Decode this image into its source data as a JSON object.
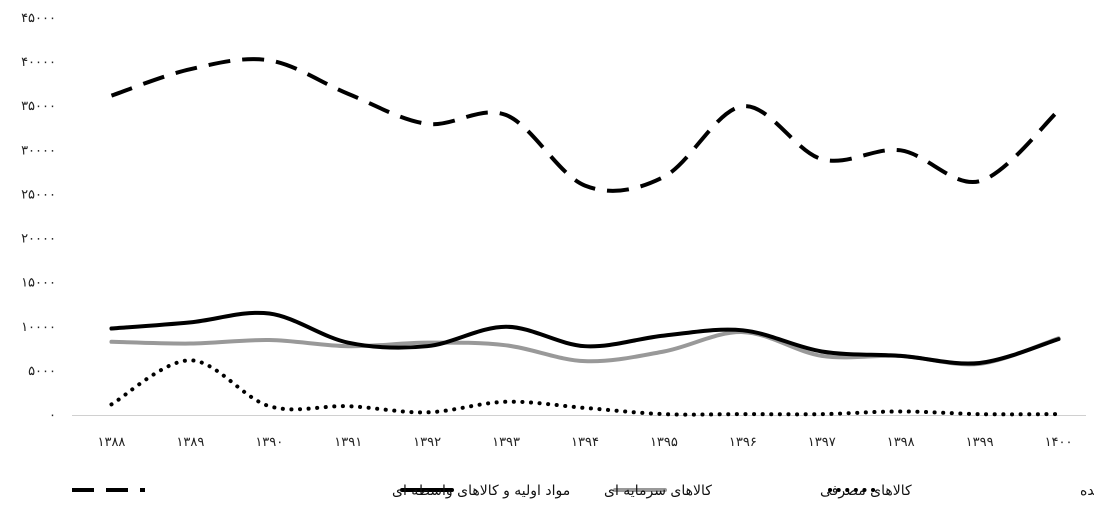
{
  "chart_data": {
    "type": "line",
    "title": "",
    "xlabel": "",
    "ylabel": "",
    "categories": [
      "۱۳۸۸",
      "۱۳۸۹",
      "۱۳۹۰",
      "۱۳۹۱",
      "۱۳۹۲",
      "۱۳۹۳",
      "۱۳۹۴",
      "۱۳۹۵",
      "۱۳۹۶",
      "۱۳۹۷",
      "۱۳۹۸",
      "۱۳۹۹",
      "۱۴۰۰"
    ],
    "y_ticks": [
      0,
      5000,
      10000,
      15000,
      20000,
      25000,
      30000,
      35000,
      40000,
      45000
    ],
    "y_tick_labels": [
      "۰",
      "۵۰۰۰",
      "۱۰۰۰۰",
      "۱۵۰۰۰",
      "۲۰۰۰۰",
      "۲۵۰۰۰",
      "۳۰۰۰۰",
      "۳۵۰۰۰",
      "۴۰۰۰۰",
      "۴۵۰۰۰"
    ],
    "ylim": [
      0,
      45000
    ],
    "grid": false,
    "legend_position": "bottom",
    "series": [
      {
        "name": "مواد اولیه و کالاهای واسطه ای",
        "style": "dashed",
        "color": "#000000",
        "values": [
          36200,
          39200,
          40200,
          36400,
          33000,
          34000,
          26000,
          27000,
          35000,
          29000,
          30000,
          26500,
          34500
        ]
      },
      {
        "name": "کالاهای سرمایه ای",
        "style": "solid",
        "color": "#000000",
        "values": [
          9800,
          10500,
          11500,
          8200,
          7800,
          10000,
          7800,
          9000,
          9600,
          7200,
          6700,
          5900,
          8600
        ]
      },
      {
        "name": "کالاهای مصرفی",
        "style": "solid",
        "color": "#999999",
        "values": [
          8300,
          8100,
          8500,
          7800,
          8200,
          7900,
          6100,
          7200,
          9400,
          6700,
          6700,
          5800,
          8700
        ]
      },
      {
        "name": "کالاهای طبقه بندی نشده",
        "style": "dotted",
        "color": "#000000",
        "values": [
          1200,
          6200,
          1000,
          1000,
          300,
          1500,
          800,
          100,
          100,
          100,
          400,
          100,
          100
        ]
      }
    ]
  }
}
